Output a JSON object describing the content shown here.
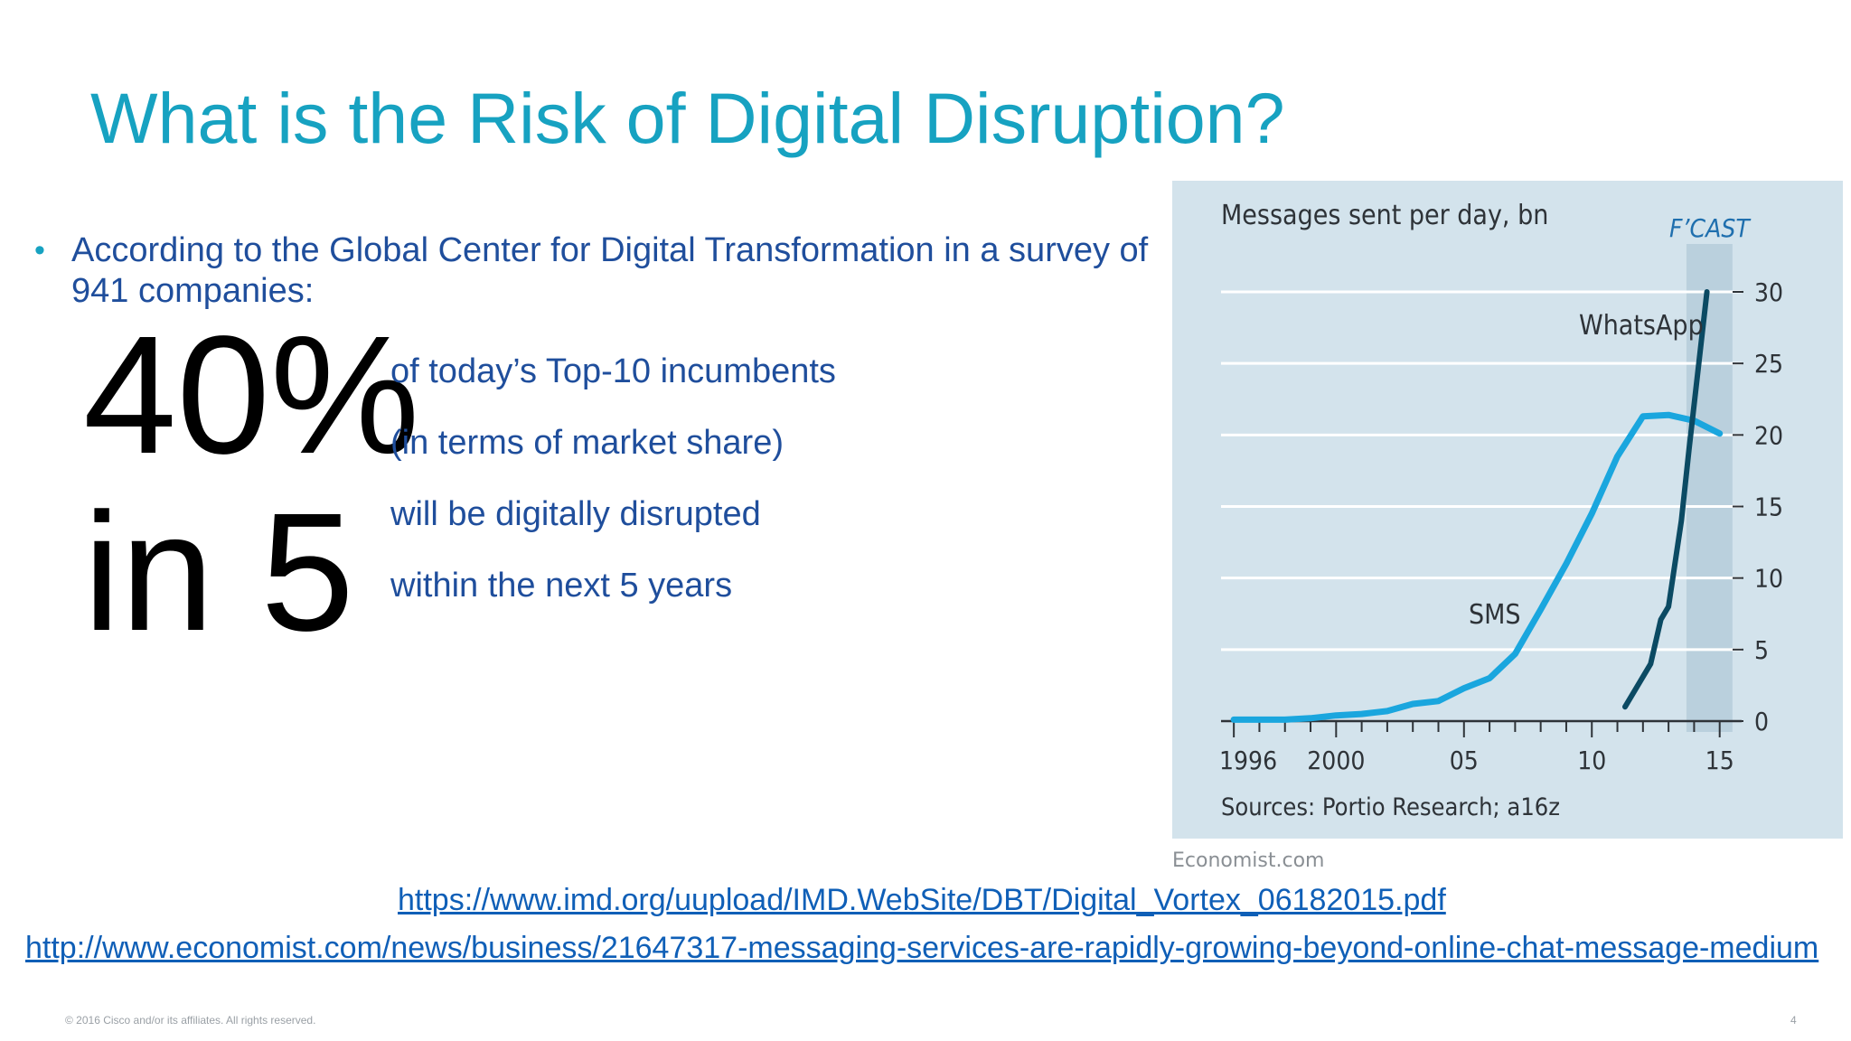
{
  "slide": {
    "title": "What is the Risk of Digital Disruption?",
    "bullet": "According to the Global Center for Digital Transformation in a survey of 941 companies:",
    "big_stat_line1": "40%",
    "big_stat_line2": "in 5",
    "stat_lines": [
      "of today’s Top-10 incumbents",
      "(in terms of market share)",
      "will be digitally disrupted",
      "within the next 5 years"
    ],
    "links": [
      "https://www.imd.org/uupload/IMD.WebSite/DBT/Digital_Vortex_06182015.pdf",
      "http://www.economist.com/news/business/21647317-messaging-services-are-rapidly-growing-beyond-online-chat-message-medium"
    ],
    "chart_credit": "Economist.com",
    "footer_copyright": "© 2016 Cisco and/or its affiliates. All rights reserved.",
    "page_number": "4"
  },
  "colors": {
    "title": "#17a2c1",
    "body_text": "#1f4e9c",
    "chart_bg": "#d3e3ec",
    "forecast_band": "#bad0dd",
    "sms_line": "#1aa6de",
    "whatsapp_line": "#0b4a63"
  },
  "chart_data": {
    "type": "line",
    "title": "Messages sent per day, bn",
    "source": "Sources: Portio Research; a16z",
    "forecast_label": "F’CAST",
    "forecast_range": [
      2013.7,
      2015.5
    ],
    "xlim": [
      1995.5,
      2016
    ],
    "ylim": [
      0,
      30
    ],
    "y_ticks": [
      0,
      5,
      10,
      15,
      20,
      25,
      30
    ],
    "x_tick_labels": [
      {
        "value": 1996,
        "label": "1996"
      },
      {
        "value": 2000,
        "label": "2000"
      },
      {
        "value": 2005,
        "label": "05"
      },
      {
        "value": 2010,
        "label": "10"
      },
      {
        "value": 2015,
        "label": "15"
      }
    ],
    "series": [
      {
        "name": "SMS",
        "color": "#1aa6de",
        "x": [
          1996,
          1997,
          1998,
          1999,
          2000,
          2001,
          2002,
          2003,
          2004,
          2005,
          2006,
          2007,
          2008,
          2009,
          2010,
          2011,
          2012,
          2013,
          2014,
          2015
        ],
        "y": [
          0.1,
          0.1,
          0.1,
          0.2,
          0.4,
          0.5,
          0.7,
          1.2,
          1.4,
          2.3,
          3.0,
          4.7,
          7.8,
          11.0,
          14.5,
          18.5,
          21.3,
          21.4,
          21.0,
          20.1
        ]
      },
      {
        "name": "WhatsApp",
        "color": "#0b4a63",
        "x": [
          2011.3,
          2012.3,
          2012.7,
          2013.0,
          2013.5,
          2013.8,
          2014.5
        ],
        "y": [
          1.0,
          4.0,
          7.1,
          8.0,
          14.0,
          19.0,
          30.0
        ]
      }
    ]
  }
}
